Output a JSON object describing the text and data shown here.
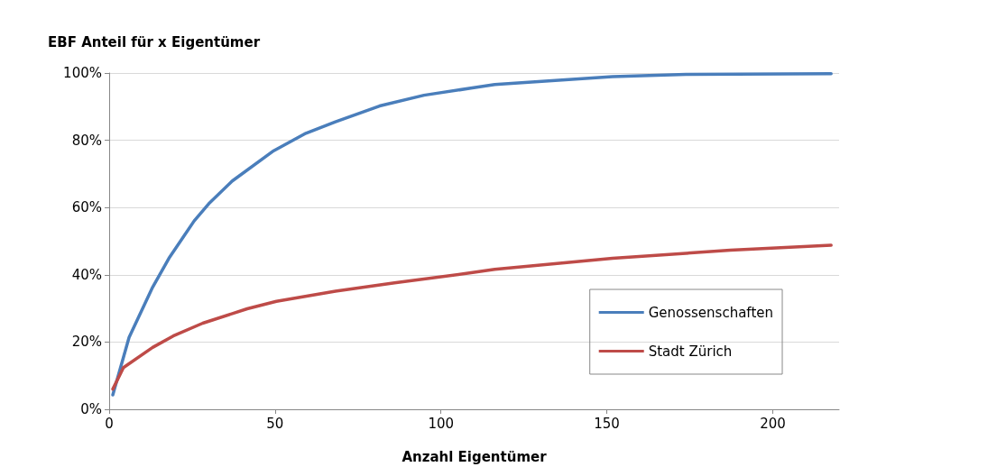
{
  "chart_data": {
    "type": "line",
    "title": "EBF Anteil für x Eigentümer",
    "xlabel": "Anzahl Eigentümer",
    "xlim": [
      0,
      220
    ],
    "xticks": [
      0,
      50,
      100,
      150,
      200
    ],
    "ylim": [
      0,
      100
    ],
    "yticks": [
      {
        "value": 0,
        "label": "0%"
      },
      {
        "value": 20,
        "label": "20%"
      },
      {
        "value": 40,
        "label": "40%"
      },
      {
        "value": 60,
        "label": "60%"
      },
      {
        "value": 80,
        "label": "80%"
      },
      {
        "value": 100,
        "label": "100%"
      }
    ],
    "grid": "y",
    "legend": "bottom right",
    "marker": "none",
    "line_style": "solid",
    "series": [
      {
        "name": "Genossenschaften",
        "color": "#4a7ebb",
        "x": [
          1.1,
          6,
          13.1,
          18,
          25.6,
          30,
          37.1,
          49.6,
          59.3,
          68.2,
          81.5,
          94.9,
          109,
          116.2,
          151.7,
          173.9,
          217.6
        ],
        "values": [
          4.3,
          21.4,
          36.3,
          44.9,
          56,
          61.1,
          67.9,
          76.9,
          82.1,
          85.5,
          90.2,
          93.4,
          95.5,
          96.6,
          98.9,
          99.6,
          99.8
        ]
      },
      {
        "name": "Stadt Zürich",
        "color": "#be4b48",
        "x": [
          1.1,
          4.3,
          13.1,
          19.3,
          28.2,
          41.6,
          50.4,
          68.2,
          86,
          109.1,
          116.2,
          151.7,
          187.2,
          217.6
        ],
        "values": [
          6,
          12.4,
          18.4,
          21.8,
          25.6,
          29.9,
          32.1,
          35.1,
          37.6,
          40.6,
          41.6,
          44.9,
          47.3,
          48.8
        ]
      }
    ]
  }
}
